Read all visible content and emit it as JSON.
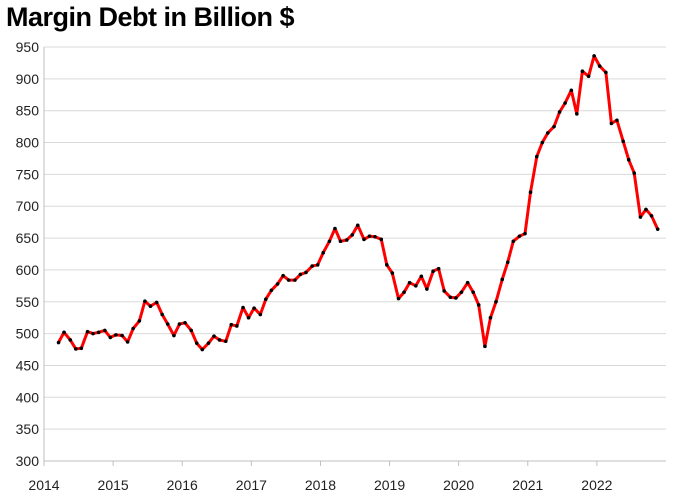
{
  "chart_data": {
    "type": "line",
    "title": "Margin Debt in Billion $",
    "xlabel": "",
    "ylabel": "",
    "ylim": [
      300,
      950
    ],
    "xlim": [
      2014,
      2023
    ],
    "yticks": [
      "300",
      "350",
      "400",
      "450",
      "500",
      "550",
      "600",
      "650",
      "700",
      "750",
      "800",
      "850",
      "900",
      "950"
    ],
    "xticks": [
      "2014",
      "2015",
      "2016",
      "2017",
      "2018",
      "2019",
      "2020",
      "2021",
      "2022"
    ],
    "grid": "horizontal",
    "line_color": "#ff0000",
    "marker_color": "#000000",
    "series": [
      {
        "x": [
          2014.21,
          2014.29,
          2014.38,
          2014.46,
          2014.54,
          2014.63,
          2014.71,
          2014.79,
          2014.88,
          2014.96,
          2015.04,
          2015.13,
          2015.21,
          2015.29,
          2015.38,
          2015.46,
          2015.54,
          2015.63,
          2015.71,
          2015.79,
          2015.88,
          2015.96,
          2016.04,
          2016.13,
          2016.21,
          2016.29,
          2016.38,
          2016.46,
          2016.54,
          2016.63,
          2016.71,
          2016.79,
          2016.88,
          2016.96,
          2017.04,
          2017.13,
          2017.21,
          2017.29,
          2017.38,
          2017.46,
          2017.54,
          2017.63,
          2017.71,
          2017.79,
          2017.88,
          2017.96,
          2018.04,
          2018.13,
          2018.21,
          2018.29,
          2018.38,
          2018.46,
          2018.54,
          2018.63,
          2018.71,
          2018.79,
          2018.88,
          2018.96,
          2019.04,
          2019.13,
          2019.21,
          2019.29,
          2019.38,
          2019.46,
          2019.54,
          2019.63,
          2019.71,
          2019.79,
          2019.88,
          2019.96,
          2020.04,
          2020.13,
          2020.21,
          2020.29,
          2020.38,
          2020.46,
          2020.54,
          2020.63,
          2020.71,
          2020.79,
          2020.88,
          2020.96,
          2021.04,
          2021.13,
          2021.21,
          2021.29,
          2021.38,
          2021.46,
          2021.54,
          2021.63,
          2021.71,
          2021.79,
          2021.88,
          2021.96,
          2022.04,
          2022.13,
          2022.21,
          2022.29,
          2022.38,
          2022.46,
          2022.54,
          2022.63,
          2022.71,
          2022.79,
          2022.88
        ],
        "y": [
          486,
          502,
          490,
          476,
          477,
          503,
          500,
          502,
          505,
          494,
          498,
          497,
          487,
          508,
          520,
          551,
          543,
          549,
          530,
          515,
          497,
          515,
          517,
          505,
          485,
          475,
          485,
          496,
          490,
          488,
          514,
          512,
          541,
          525,
          540,
          530,
          554,
          568,
          578,
          591,
          584,
          584,
          593,
          596,
          606,
          608,
          627,
          645,
          665,
          645,
          647,
          655,
          670,
          648,
          653,
          652,
          648,
          608,
          595,
          555,
          565,
          580,
          575,
          590,
          570,
          598,
          602,
          567,
          557,
          556,
          565,
          580,
          565,
          545,
          480,
          525,
          550,
          585,
          612,
          645,
          653,
          657,
          722,
          778,
          800,
          815,
          825,
          848,
          862,
          882,
          845,
          912,
          904,
          936,
          920,
          910,
          830,
          835,
          802,
          773,
          752,
          683,
          695,
          685,
          664
        ]
      }
    ]
  }
}
